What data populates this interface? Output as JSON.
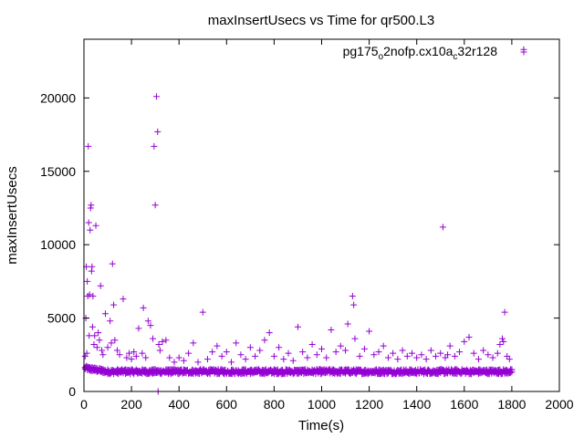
{
  "chart_data": {
    "type": "scatter",
    "title": "maxInsertUsecs vs Time for qr500.L3",
    "xlabel": "Time(s)",
    "ylabel": "maxInsertUsecs",
    "xlim": [
      0,
      2000
    ],
    "ylim": [
      0,
      24000
    ],
    "xticks": [
      0,
      200,
      400,
      600,
      800,
      1000,
      1200,
      1400,
      1600,
      1800,
      2000
    ],
    "yticks": [
      0,
      5000,
      10000,
      15000,
      20000
    ],
    "grid": false,
    "legend_position": "top-right",
    "series": [
      {
        "name": "pg175_o2nofp.cx10a_c32r128",
        "name_parts": {
          "base": "pg175",
          "sub1": "o",
          "mid": "2nofp.cx10a",
          "sub2": "c",
          "tail": "32r128"
        },
        "marker": "plus",
        "color": "#9400d3",
        "baseline": {
          "x_start": 5,
          "x_end": 1800,
          "step": 5,
          "y_start": 1600,
          "y_plateau": 1350,
          "jitter": 160
        },
        "points": [
          [
            5,
            2400
          ],
          [
            8,
            5000
          ],
          [
            10,
            8500
          ],
          [
            12,
            2600
          ],
          [
            14,
            7500
          ],
          [
            16,
            6500
          ],
          [
            18,
            16700
          ],
          [
            20,
            11500
          ],
          [
            22,
            3800
          ],
          [
            24,
            6600
          ],
          [
            26,
            11000
          ],
          [
            28,
            12500
          ],
          [
            30,
            12700
          ],
          [
            32,
            8200
          ],
          [
            34,
            8500
          ],
          [
            36,
            4400
          ],
          [
            38,
            6500
          ],
          [
            42,
            3200
          ],
          [
            45,
            3800
          ],
          [
            50,
            11300
          ],
          [
            55,
            3000
          ],
          [
            60,
            4000
          ],
          [
            65,
            3500
          ],
          [
            70,
            7200
          ],
          [
            75,
            2800
          ],
          [
            80,
            2500
          ],
          [
            90,
            5300
          ],
          [
            100,
            3000
          ],
          [
            110,
            4800
          ],
          [
            115,
            3300
          ],
          [
            120,
            8700
          ],
          [
            125,
            5900
          ],
          [
            130,
            3500
          ],
          [
            140,
            2800
          ],
          [
            150,
            2500
          ],
          [
            165,
            6300
          ],
          [
            180,
            2300
          ],
          [
            190,
            2600
          ],
          [
            200,
            2200
          ],
          [
            210,
            2700
          ],
          [
            220,
            2400
          ],
          [
            230,
            4300
          ],
          [
            245,
            2600
          ],
          [
            250,
            5700
          ],
          [
            260,
            2300
          ],
          [
            270,
            4800
          ],
          [
            280,
            4500
          ],
          [
            290,
            3600
          ],
          [
            295,
            16700
          ],
          [
            300,
            12700
          ],
          [
            305,
            20100
          ],
          [
            310,
            17700
          ],
          [
            312,
            0
          ],
          [
            315,
            3200
          ],
          [
            320,
            2800
          ],
          [
            330,
            3400
          ],
          [
            345,
            3500
          ],
          [
            360,
            2300
          ],
          [
            380,
            2000
          ],
          [
            400,
            2300
          ],
          [
            420,
            2100
          ],
          [
            440,
            2600
          ],
          [
            460,
            3300
          ],
          [
            480,
            2000
          ],
          [
            500,
            5400
          ],
          [
            520,
            2200
          ],
          [
            540,
            2700
          ],
          [
            560,
            3100
          ],
          [
            580,
            2400
          ],
          [
            600,
            2700
          ],
          [
            620,
            2000
          ],
          [
            640,
            3300
          ],
          [
            660,
            2500
          ],
          [
            680,
            2200
          ],
          [
            700,
            3000
          ],
          [
            720,
            2400
          ],
          [
            740,
            2800
          ],
          [
            760,
            3500
          ],
          [
            780,
            4000
          ],
          [
            800,
            2400
          ],
          [
            820,
            3000
          ],
          [
            840,
            2200
          ],
          [
            860,
            2600
          ],
          [
            880,
            2100
          ],
          [
            900,
            4400
          ],
          [
            920,
            2700
          ],
          [
            940,
            2300
          ],
          [
            960,
            3200
          ],
          [
            980,
            2500
          ],
          [
            1000,
            2900
          ],
          [
            1020,
            2300
          ],
          [
            1040,
            4200
          ],
          [
            1060,
            2700
          ],
          [
            1080,
            3100
          ],
          [
            1100,
            2800
          ],
          [
            1110,
            4600
          ],
          [
            1130,
            6500
          ],
          [
            1135,
            5900
          ],
          [
            1140,
            3600
          ],
          [
            1160,
            2400
          ],
          [
            1180,
            2900
          ],
          [
            1200,
            4100
          ],
          [
            1220,
            2500
          ],
          [
            1240,
            2700
          ],
          [
            1260,
            3100
          ],
          [
            1280,
            2300
          ],
          [
            1300,
            2600
          ],
          [
            1320,
            2200
          ],
          [
            1340,
            2800
          ],
          [
            1360,
            2400
          ],
          [
            1380,
            2600
          ],
          [
            1400,
            2300
          ],
          [
            1420,
            2500
          ],
          [
            1440,
            2200
          ],
          [
            1460,
            2800
          ],
          [
            1480,
            2400
          ],
          [
            1500,
            2600
          ],
          [
            1510,
            11200
          ],
          [
            1520,
            2300
          ],
          [
            1530,
            2500
          ],
          [
            1540,
            3100
          ],
          [
            1560,
            2400
          ],
          [
            1580,
            2700
          ],
          [
            1600,
            3400
          ],
          [
            1620,
            3700
          ],
          [
            1640,
            2600
          ],
          [
            1660,
            2200
          ],
          [
            1680,
            2800
          ],
          [
            1700,
            2500
          ],
          [
            1720,
            2300
          ],
          [
            1740,
            2600
          ],
          [
            1750,
            3200
          ],
          [
            1760,
            3600
          ],
          [
            1765,
            3400
          ],
          [
            1770,
            5400
          ],
          [
            1780,
            2400
          ],
          [
            1790,
            2200
          ],
          [
            1850,
            23300
          ]
        ]
      }
    ]
  }
}
